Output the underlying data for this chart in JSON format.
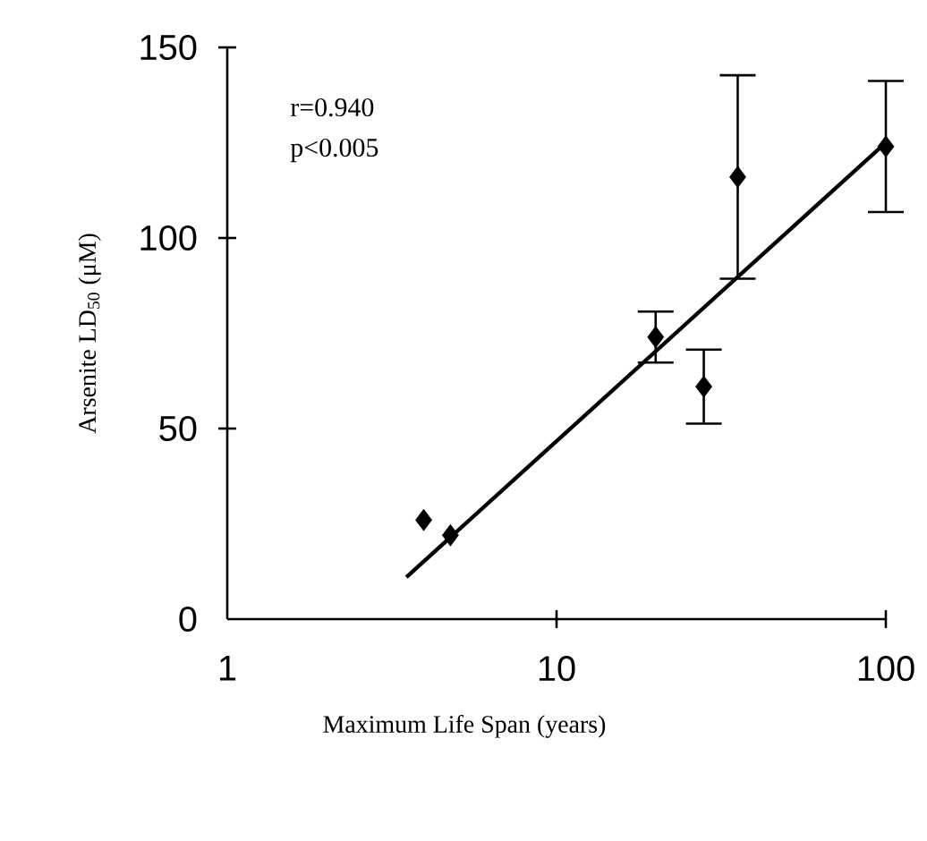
{
  "chart_data": {
    "type": "scatter",
    "xlabel": "Maximum Life Span (years)",
    "ylabel": "Arsenite LD$_{50}$ (μM)",
    "annotations": [
      "r=0.940",
      "p<0.005"
    ],
    "log": "x",
    "xlim": [
      1,
      100
    ],
    "xticks": [
      1,
      10,
      100
    ],
    "ylim": [
      0,
      150
    ],
    "yticks": [
      0,
      50,
      100,
      150
    ],
    "series": [
      {
        "type": "scatter",
        "color": "#000000",
        "marker": "diamond",
        "x": [
          3.95,
          4.76,
          20,
          28,
          35.5,
          100
        ],
        "values": [
          26,
          22,
          74,
          61,
          116,
          124
        ],
        "errors": [
          null,
          null,
          7,
          10,
          27,
          17.5
        ]
      },
      {
        "type": "line",
        "color": "#000000",
        "marker": "none",
        "line_style": "solid",
        "x": [
          3.5,
          100
        ],
        "values": [
          11,
          125
        ]
      }
    ]
  }
}
